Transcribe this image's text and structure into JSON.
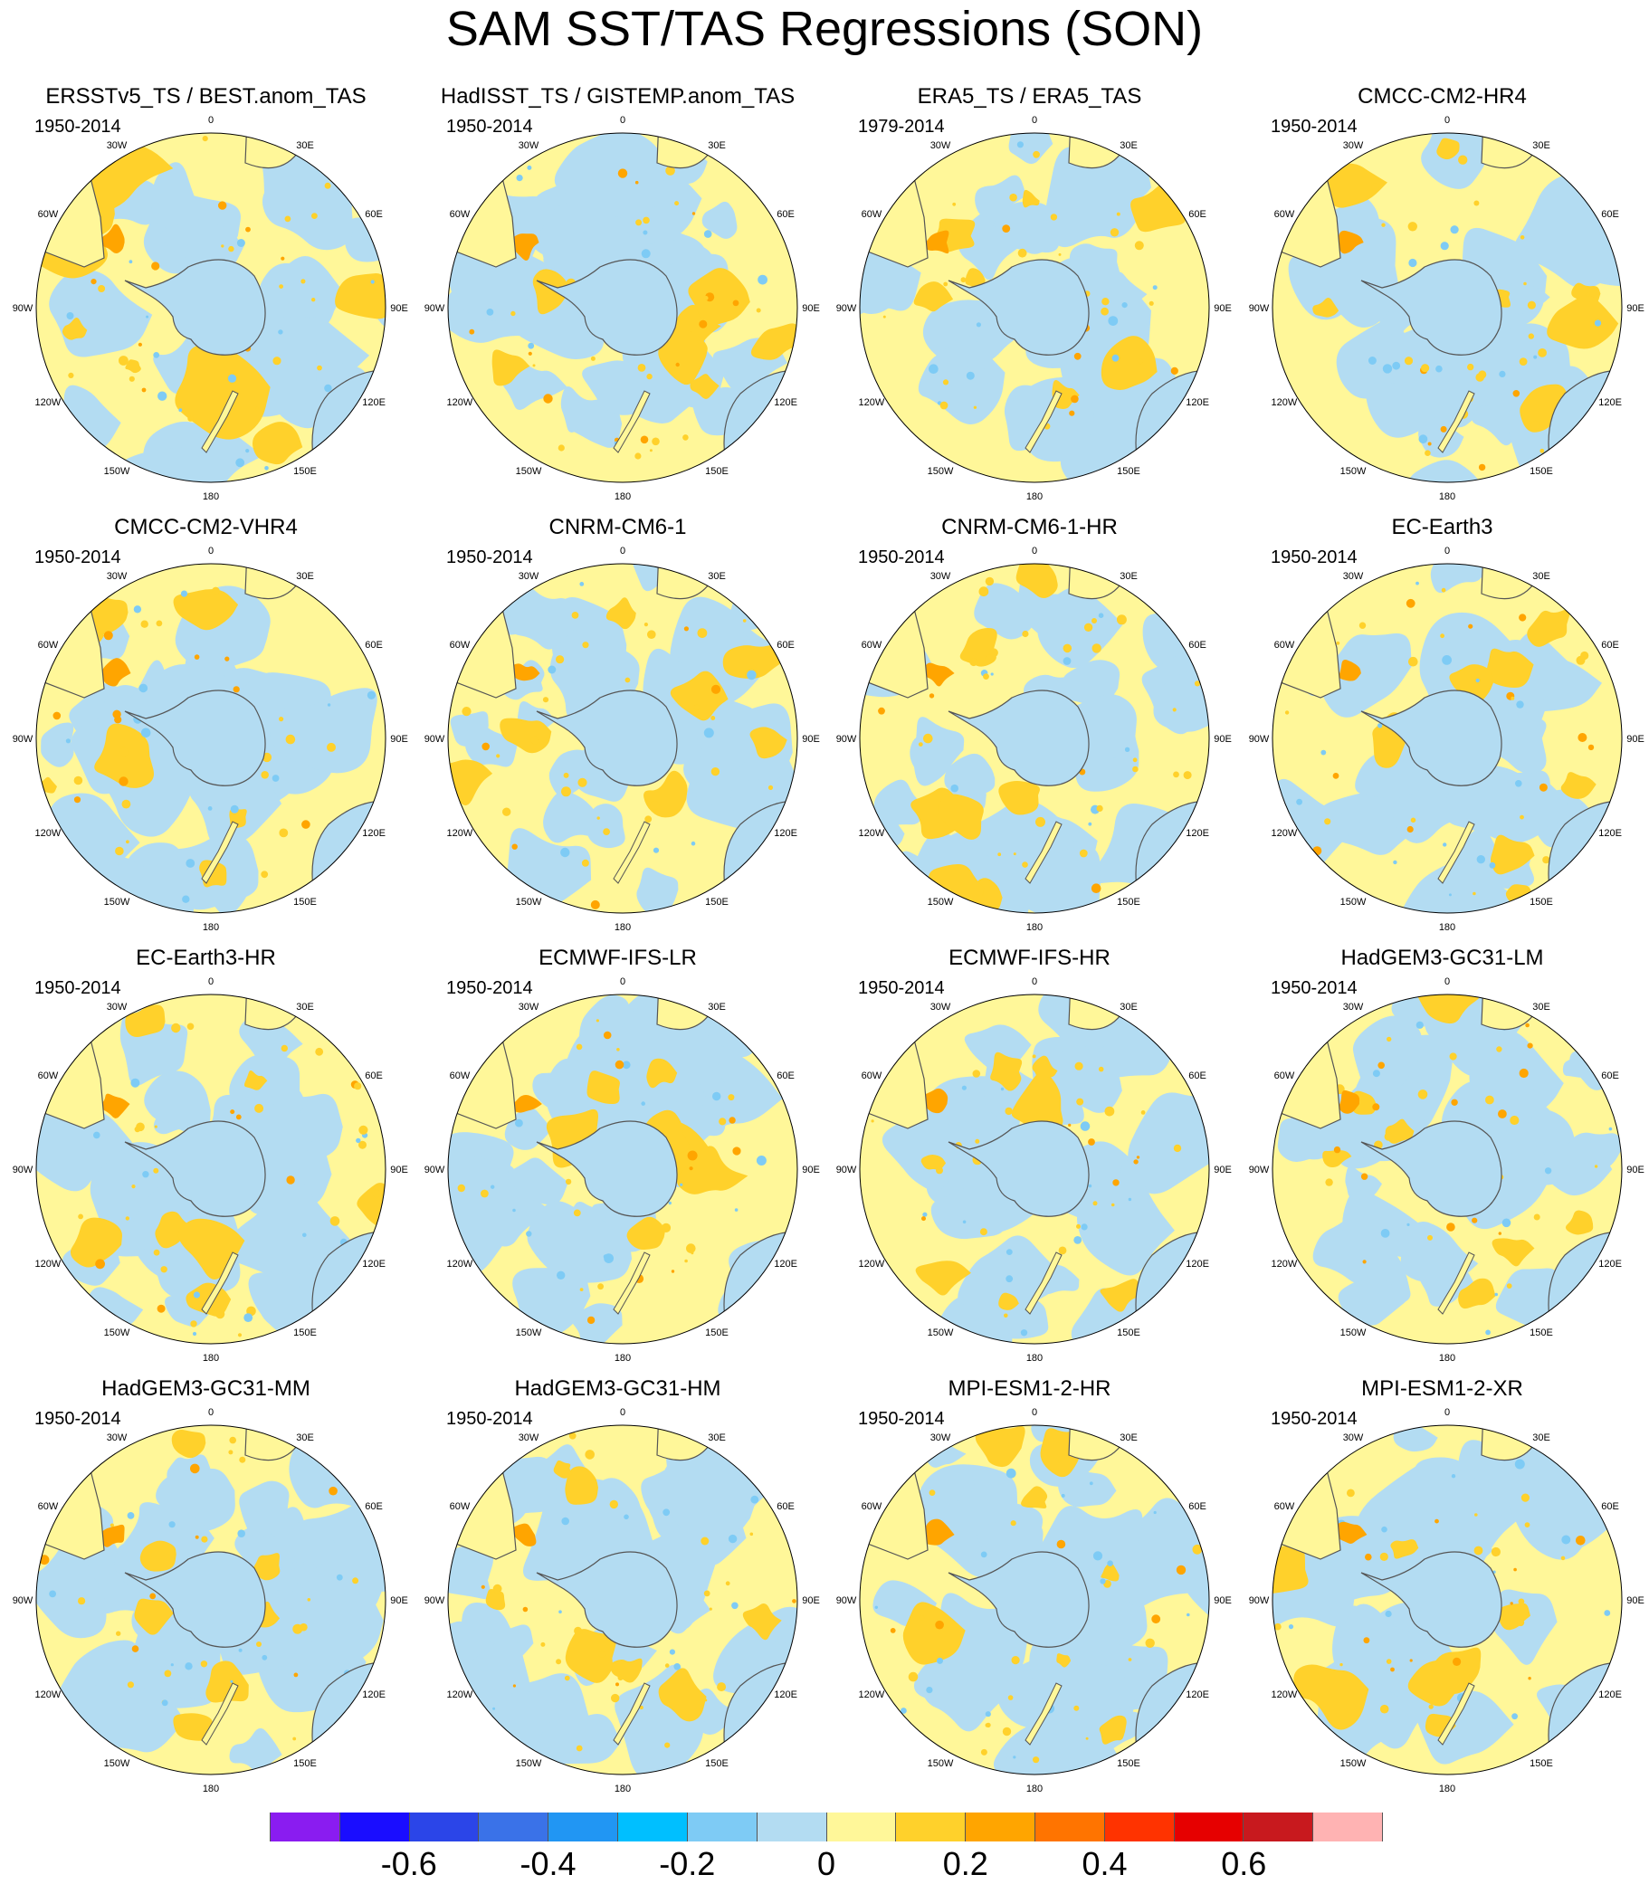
{
  "title": "SAM SST/TAS Regressions (SON)",
  "lon_labels": {
    "0": "0",
    "30E": "30E",
    "60E": "60E",
    "90E": "90E",
    "120E": "120E",
    "150E": "150E",
    "180": "180",
    "150W": "150W",
    "120W": "120W",
    "90W": "90W",
    "60W": "60W",
    "30W": "30W"
  },
  "panels": [
    {
      "title": "ERSSTv5_TS / BEST.anom_TAS",
      "period": "1950-2014"
    },
    {
      "title": "HadISST_TS / GISTEMP.anom_TAS",
      "period": "1950-2014"
    },
    {
      "title": "ERA5_TS / ERA5_TAS",
      "period": "1979-2014"
    },
    {
      "title": "CMCC-CM2-HR4",
      "period": "1950-2014"
    },
    {
      "title": "CMCC-CM2-VHR4",
      "period": "1950-2014"
    },
    {
      "title": "CNRM-CM6-1",
      "period": "1950-2014"
    },
    {
      "title": "CNRM-CM6-1-HR",
      "period": "1950-2014"
    },
    {
      "title": "EC-Earth3",
      "period": "1950-2014"
    },
    {
      "title": "EC-Earth3-HR",
      "period": "1950-2014"
    },
    {
      "title": "ECMWF-IFS-LR",
      "period": "1950-2014"
    },
    {
      "title": "ECMWF-IFS-HR",
      "period": "1950-2014"
    },
    {
      "title": "HadGEM3-GC31-LM",
      "period": "1950-2014"
    },
    {
      "title": "HadGEM3-GC31-MM",
      "period": "1950-2014"
    },
    {
      "title": "HadGEM3-GC31-HM",
      "period": "1950-2014"
    },
    {
      "title": "MPI-ESM1-2-HR",
      "period": "1950-2014"
    },
    {
      "title": "MPI-ESM1-2-XR",
      "period": "1950-2014"
    }
  ],
  "colorbar": {
    "colors": [
      "#8a1cf0",
      "#1a0dff",
      "#2b45e8",
      "#3a72e8",
      "#2196f3",
      "#00bfff",
      "#7ecbf5",
      "#b3dcf2",
      "#fff799",
      "#ffd12b",
      "#ffa500",
      "#ff7400",
      "#ff3300",
      "#e60000",
      "#c8191e",
      "#ffb3b3"
    ],
    "labels": [
      "-0.6",
      "-0.4",
      "-0.2",
      "0",
      "0.2",
      "0.4",
      "0.6"
    ],
    "label_boundary_index": [
      1,
      3,
      5,
      7,
      9,
      11,
      13
    ]
  },
  "palette": {
    "yellow": "#fff799",
    "lightblue": "#b3dcf2",
    "gold": "#ffd12b",
    "orange": "#ffa500",
    "darkorange": "#ff7400",
    "blue": "#7ecbf5",
    "landline": "#555555"
  }
}
